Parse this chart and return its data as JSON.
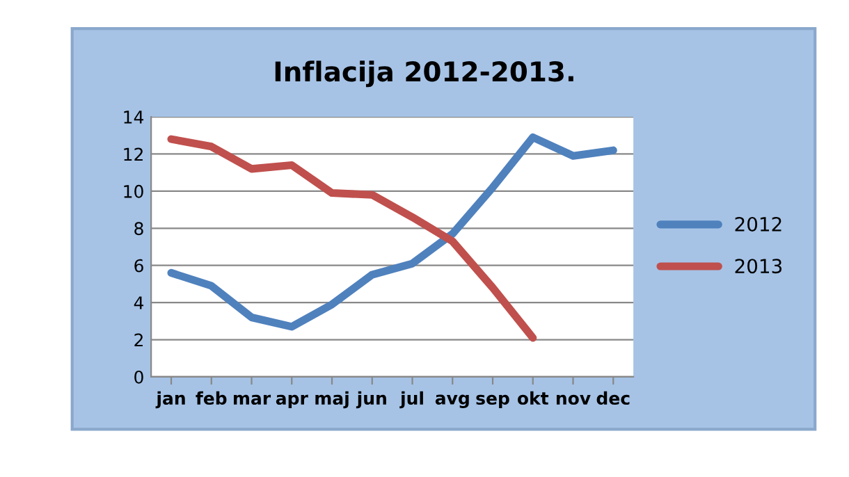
{
  "chart_data": {
    "type": "line",
    "title": "Inflacija 2012-2013.",
    "categories": [
      "jan",
      "feb",
      "mar",
      "apr",
      "maj",
      "jun",
      "jul",
      "avg",
      "sep",
      "okt",
      "nov",
      "dec"
    ],
    "series": [
      {
        "name": "2012",
        "color": "#4f81bd",
        "values": [
          5.6,
          4.9,
          3.2,
          2.7,
          3.9,
          5.5,
          6.1,
          7.7,
          10.2,
          12.9,
          11.9,
          12.2
        ]
      },
      {
        "name": "2013",
        "color": "#c0504d",
        "values": [
          12.8,
          12.4,
          11.2,
          11.4,
          9.9,
          9.8,
          8.6,
          7.3,
          4.8,
          2.1,
          null,
          null
        ]
      }
    ],
    "ylim": [
      0,
      14
    ],
    "yticks": [
      0,
      2,
      4,
      6,
      8,
      10,
      12,
      14
    ],
    "grid": "y",
    "legend": "right",
    "marker": "none",
    "line_style": "solid"
  }
}
